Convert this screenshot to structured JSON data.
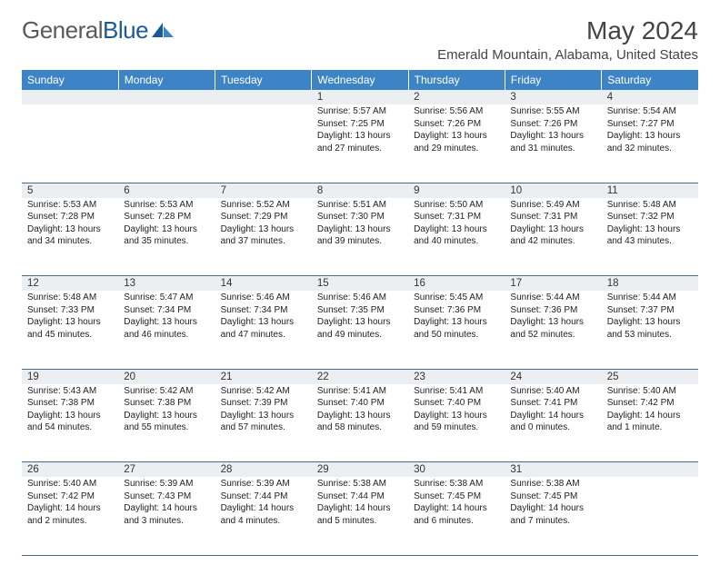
{
  "brand": {
    "part1": "General",
    "part2": "Blue"
  },
  "title": "May 2024",
  "subtitle": "Emerald Mountain, Alabama, United States",
  "colors": {
    "header_bg": "#3d84c6",
    "header_text": "#ffffff",
    "daynum_bg": "#eceff2",
    "border": "#4a6a8a",
    "text": "#222222",
    "logo_gray": "#5a5a5a",
    "logo_blue": "#1a5a9a"
  },
  "weekdays": [
    "Sunday",
    "Monday",
    "Tuesday",
    "Wednesday",
    "Thursday",
    "Friday",
    "Saturday"
  ],
  "weeks": [
    [
      null,
      null,
      null,
      {
        "n": "1",
        "sr": "5:57 AM",
        "ss": "7:25 PM",
        "dl": "13 hours and 27 minutes."
      },
      {
        "n": "2",
        "sr": "5:56 AM",
        "ss": "7:26 PM",
        "dl": "13 hours and 29 minutes."
      },
      {
        "n": "3",
        "sr": "5:55 AM",
        "ss": "7:26 PM",
        "dl": "13 hours and 31 minutes."
      },
      {
        "n": "4",
        "sr": "5:54 AM",
        "ss": "7:27 PM",
        "dl": "13 hours and 32 minutes."
      }
    ],
    [
      {
        "n": "5",
        "sr": "5:53 AM",
        "ss": "7:28 PM",
        "dl": "13 hours and 34 minutes."
      },
      {
        "n": "6",
        "sr": "5:53 AM",
        "ss": "7:28 PM",
        "dl": "13 hours and 35 minutes."
      },
      {
        "n": "7",
        "sr": "5:52 AM",
        "ss": "7:29 PM",
        "dl": "13 hours and 37 minutes."
      },
      {
        "n": "8",
        "sr": "5:51 AM",
        "ss": "7:30 PM",
        "dl": "13 hours and 39 minutes."
      },
      {
        "n": "9",
        "sr": "5:50 AM",
        "ss": "7:31 PM",
        "dl": "13 hours and 40 minutes."
      },
      {
        "n": "10",
        "sr": "5:49 AM",
        "ss": "7:31 PM",
        "dl": "13 hours and 42 minutes."
      },
      {
        "n": "11",
        "sr": "5:48 AM",
        "ss": "7:32 PM",
        "dl": "13 hours and 43 minutes."
      }
    ],
    [
      {
        "n": "12",
        "sr": "5:48 AM",
        "ss": "7:33 PM",
        "dl": "13 hours and 45 minutes."
      },
      {
        "n": "13",
        "sr": "5:47 AM",
        "ss": "7:34 PM",
        "dl": "13 hours and 46 minutes."
      },
      {
        "n": "14",
        "sr": "5:46 AM",
        "ss": "7:34 PM",
        "dl": "13 hours and 47 minutes."
      },
      {
        "n": "15",
        "sr": "5:46 AM",
        "ss": "7:35 PM",
        "dl": "13 hours and 49 minutes."
      },
      {
        "n": "16",
        "sr": "5:45 AM",
        "ss": "7:36 PM",
        "dl": "13 hours and 50 minutes."
      },
      {
        "n": "17",
        "sr": "5:44 AM",
        "ss": "7:36 PM",
        "dl": "13 hours and 52 minutes."
      },
      {
        "n": "18",
        "sr": "5:44 AM",
        "ss": "7:37 PM",
        "dl": "13 hours and 53 minutes."
      }
    ],
    [
      {
        "n": "19",
        "sr": "5:43 AM",
        "ss": "7:38 PM",
        "dl": "13 hours and 54 minutes."
      },
      {
        "n": "20",
        "sr": "5:42 AM",
        "ss": "7:38 PM",
        "dl": "13 hours and 55 minutes."
      },
      {
        "n": "21",
        "sr": "5:42 AM",
        "ss": "7:39 PM",
        "dl": "13 hours and 57 minutes."
      },
      {
        "n": "22",
        "sr": "5:41 AM",
        "ss": "7:40 PM",
        "dl": "13 hours and 58 minutes."
      },
      {
        "n": "23",
        "sr": "5:41 AM",
        "ss": "7:40 PM",
        "dl": "13 hours and 59 minutes."
      },
      {
        "n": "24",
        "sr": "5:40 AM",
        "ss": "7:41 PM",
        "dl": "14 hours and 0 minutes."
      },
      {
        "n": "25",
        "sr": "5:40 AM",
        "ss": "7:42 PM",
        "dl": "14 hours and 1 minute."
      }
    ],
    [
      {
        "n": "26",
        "sr": "5:40 AM",
        "ss": "7:42 PM",
        "dl": "14 hours and 2 minutes."
      },
      {
        "n": "27",
        "sr": "5:39 AM",
        "ss": "7:43 PM",
        "dl": "14 hours and 3 minutes."
      },
      {
        "n": "28",
        "sr": "5:39 AM",
        "ss": "7:44 PM",
        "dl": "14 hours and 4 minutes."
      },
      {
        "n": "29",
        "sr": "5:38 AM",
        "ss": "7:44 PM",
        "dl": "14 hours and 5 minutes."
      },
      {
        "n": "30",
        "sr": "5:38 AM",
        "ss": "7:45 PM",
        "dl": "14 hours and 6 minutes."
      },
      {
        "n": "31",
        "sr": "5:38 AM",
        "ss": "7:45 PM",
        "dl": "14 hours and 7 minutes."
      },
      null
    ]
  ],
  "labels": {
    "sunrise": "Sunrise:",
    "sunset": "Sunset:",
    "daylight": "Daylight:"
  }
}
